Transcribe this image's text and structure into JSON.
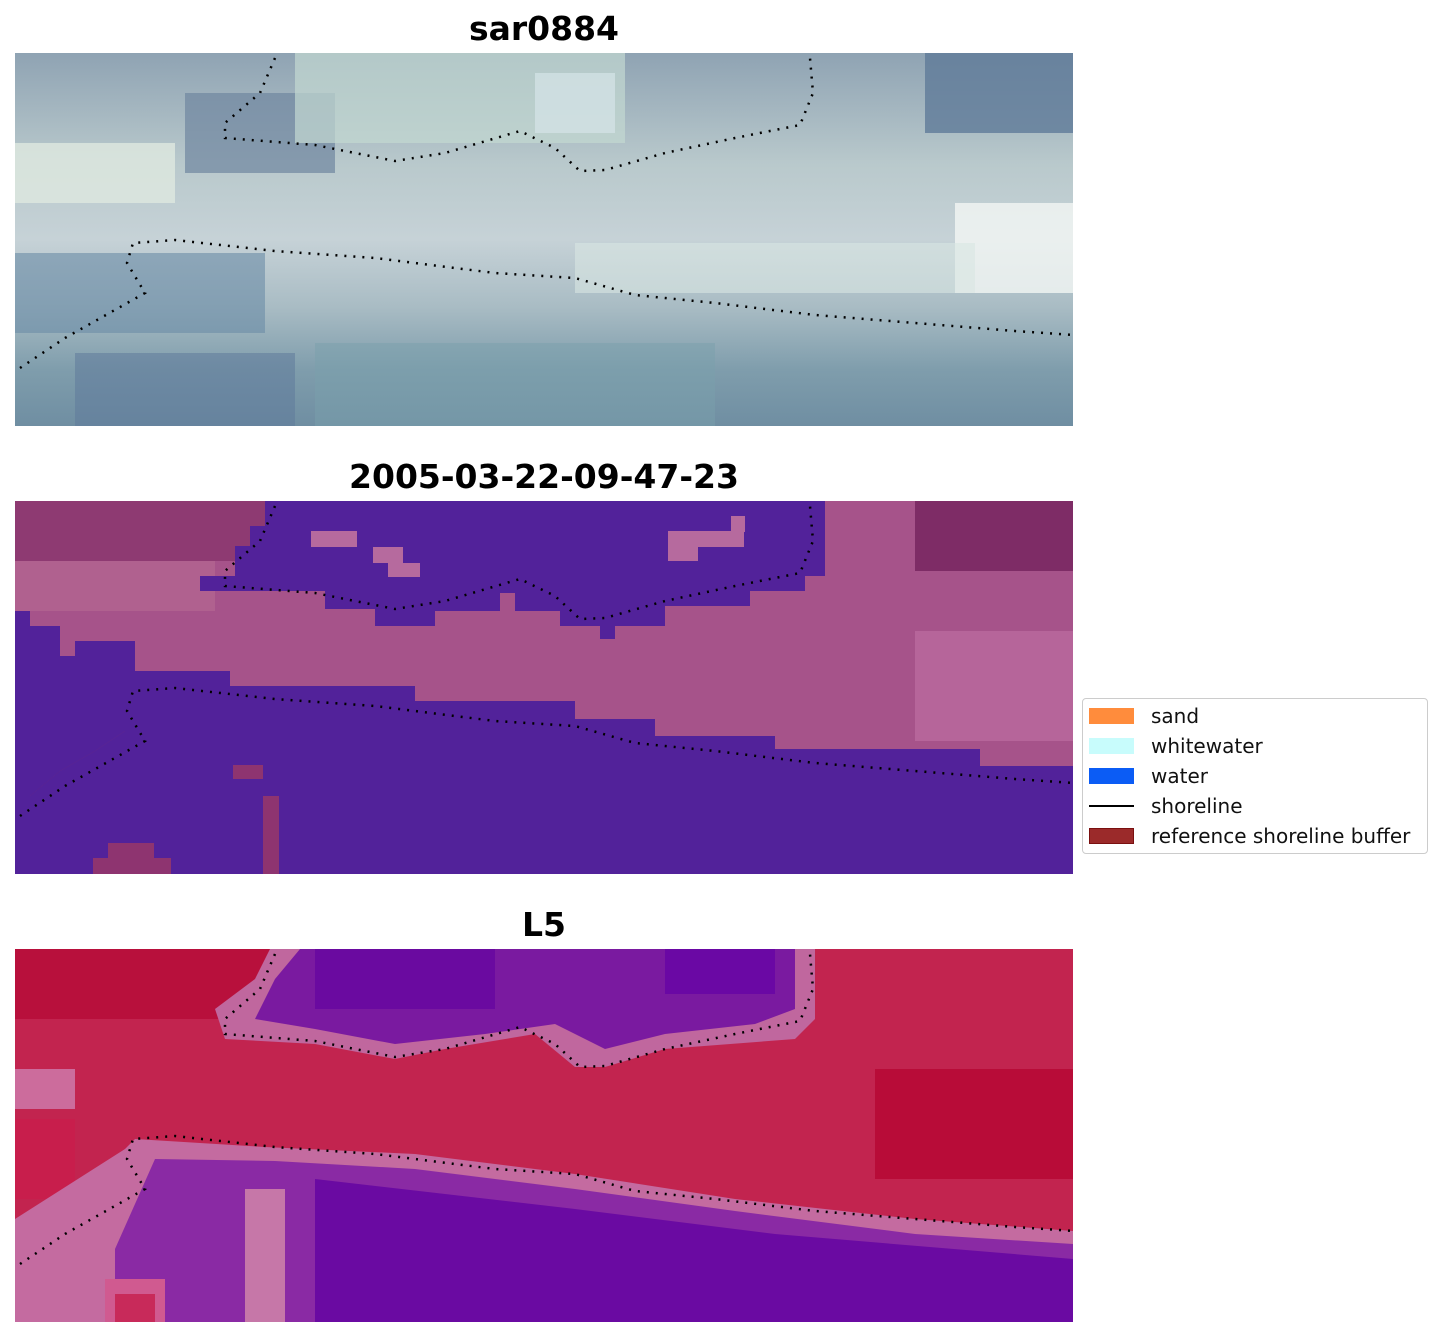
{
  "panels": [
    {
      "title": "sar0884"
    },
    {
      "title": "2005-03-22-09-47-23"
    },
    {
      "title": "L5"
    }
  ],
  "legend": {
    "items": [
      {
        "label": "sand",
        "color": "#ff8c3c",
        "kind": "patch"
      },
      {
        "label": "whitewater",
        "color": "#c8fcfc",
        "kind": "patch"
      },
      {
        "label": "water",
        "color": "#0b5cf5",
        "kind": "patch"
      },
      {
        "label": "shoreline",
        "color": "#000000",
        "kind": "line"
      },
      {
        "label": "reference shoreline buffer",
        "color": "#9b2a2a",
        "kind": "patch"
      }
    ]
  }
}
